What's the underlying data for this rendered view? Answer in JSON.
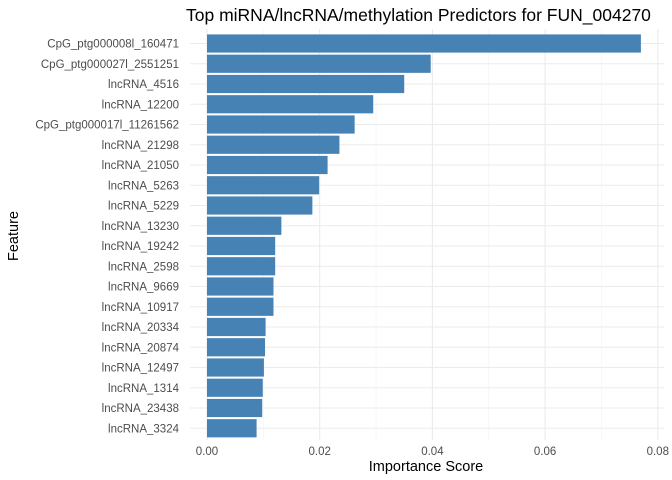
{
  "chart_data": {
    "type": "bar",
    "orientation": "horizontal",
    "title": "Top miRNA/lncRNA/methylation Predictors for FUN_004270",
    "xlabel": "Importance Score",
    "ylabel": "Feature",
    "xlim": [
      0,
      0.08
    ],
    "xticks": [
      "0.00",
      "0.02",
      "0.04",
      "0.06",
      "0.08"
    ],
    "bar_color": "#4682b4",
    "grid": true,
    "categories": [
      "CpG_ptg000008l_160471",
      "CpG_ptg000027l_2551251",
      "lncRNA_4516",
      "lncRNA_12200",
      "CpG_ptg000017l_11261562",
      "lncRNA_21298",
      "lncRNA_21050",
      "lncRNA_5263",
      "lncRNA_5229",
      "lncRNA_13230",
      "lncRNA_19242",
      "lncRNA_2598",
      "lncRNA_9669",
      "lncRNA_10917",
      "lncRNA_20334",
      "lncRNA_20874",
      "lncRNA_12497",
      "lncRNA_1314",
      "lncRNA_23438",
      "lncRNA_3324"
    ],
    "values": [
      0.077,
      0.0397,
      0.035,
      0.0295,
      0.0262,
      0.0235,
      0.0214,
      0.0199,
      0.0187,
      0.0132,
      0.0121,
      0.0121,
      0.0118,
      0.0118,
      0.0104,
      0.0103,
      0.0101,
      0.0099,
      0.0098,
      0.0088
    ]
  }
}
